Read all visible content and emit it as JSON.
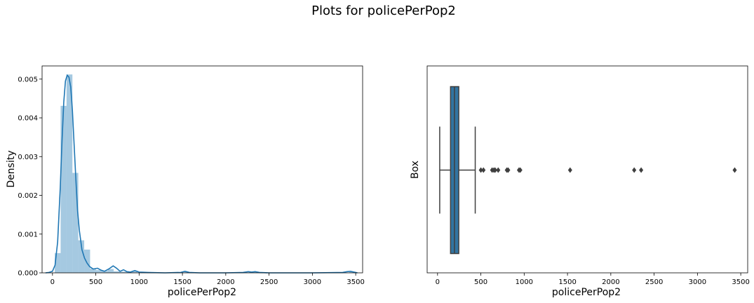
{
  "title": "Plots for policePerPop2",
  "chart_data": [
    {
      "type": "bar",
      "subtype": "histogram-with-kde",
      "xlabel": "policePerPop2",
      "ylabel": "Density",
      "xlim": [
        -120,
        3580
      ],
      "ylim": [
        0,
        0.00534
      ],
      "xticks": [
        0,
        500,
        1000,
        1500,
        2000,
        2500,
        3000,
        3500
      ],
      "yticks": [
        0.0,
        0.001,
        0.002,
        0.003,
        0.004,
        0.005
      ],
      "ytick_labels": [
        "0.000",
        "0.001",
        "0.002",
        "0.003",
        "0.004",
        "0.005"
      ],
      "bin_width": 68,
      "bars": [
        {
          "x0": 26,
          "value": 0.00051
        },
        {
          "x0": 94,
          "value": 0.00431
        },
        {
          "x0": 162,
          "value": 0.00512
        },
        {
          "x0": 230,
          "value": 0.00258
        },
        {
          "x0": 298,
          "value": 0.00084
        },
        {
          "x0": 366,
          "value": 0.0006
        },
        {
          "x0": 434,
          "value": 0.00011
        },
        {
          "x0": 502,
          "value": 7e-05
        },
        {
          "x0": 570,
          "value": 5e-05
        },
        {
          "x0": 638,
          "value": 0.0001
        },
        {
          "x0": 706,
          "value": 4e-05
        },
        {
          "x0": 774,
          "value": 3e-05
        },
        {
          "x0": 842,
          "value": 3e-05
        },
        {
          "x0": 910,
          "value": 4e-05
        },
        {
          "x0": 1522,
          "value": 2e-05
        },
        {
          "x0": 2270,
          "value": 2e-05
        },
        {
          "x0": 2338,
          "value": 2e-05
        },
        {
          "x0": 3426,
          "value": 2e-05
        }
      ],
      "kde": {
        "x": [
          -80,
          -40,
          0,
          30,
          60,
          90,
          110,
          130,
          150,
          170,
          190,
          210,
          230,
          250,
          270,
          290,
          310,
          340,
          370,
          400,
          430,
          470,
          520,
          560,
          600,
          650,
          700,
          740,
          780,
          820,
          860,
          900,
          950,
          1000,
          1100,
          1300,
          1480,
          1530,
          1580,
          1700,
          2000,
          2200,
          2260,
          2300,
          2340,
          2390,
          2500,
          3000,
          3350,
          3400,
          3440,
          3480,
          3520
        ],
        "y": [
          0,
          1e-05,
          4e-05,
          0.0002,
          0.0008,
          0.0022,
          0.0034,
          0.0044,
          0.00495,
          0.0051,
          0.00505,
          0.0048,
          0.0042,
          0.0033,
          0.0024,
          0.0016,
          0.0011,
          0.0006,
          0.00038,
          0.00025,
          0.00016,
          0.0001,
          0.00012,
          7e-05,
          4e-05,
          0.0001,
          0.00018,
          0.00012,
          4e-05,
          8e-05,
          3e-05,
          2e-05,
          6e-05,
          2e-05,
          1e-05,
          0.0,
          1e-05,
          4e-05,
          1e-05,
          0.0,
          0.0,
          1e-05,
          3e-05,
          2e-05,
          3e-05,
          1e-05,
          0.0,
          0.0,
          1e-05,
          3e-05,
          4e-05,
          2e-05,
          0.0
        ]
      }
    },
    {
      "type": "box",
      "xlabel": "policePerPop2",
      "ylabel": "Box",
      "xlim": [
        -120,
        3580
      ],
      "xticks": [
        0,
        500,
        1000,
        1500,
        2000,
        2500,
        3000,
        3500
      ],
      "whisker_low": 25,
      "q1": 150,
      "median": 195,
      "q3": 245,
      "whisker_high": 435,
      "outliers": [
        500,
        530,
        630,
        650,
        665,
        700,
        800,
        815,
        940,
        955,
        1530,
        2270,
        2350,
        3430
      ],
      "box_color": "#3274a1"
    }
  ]
}
